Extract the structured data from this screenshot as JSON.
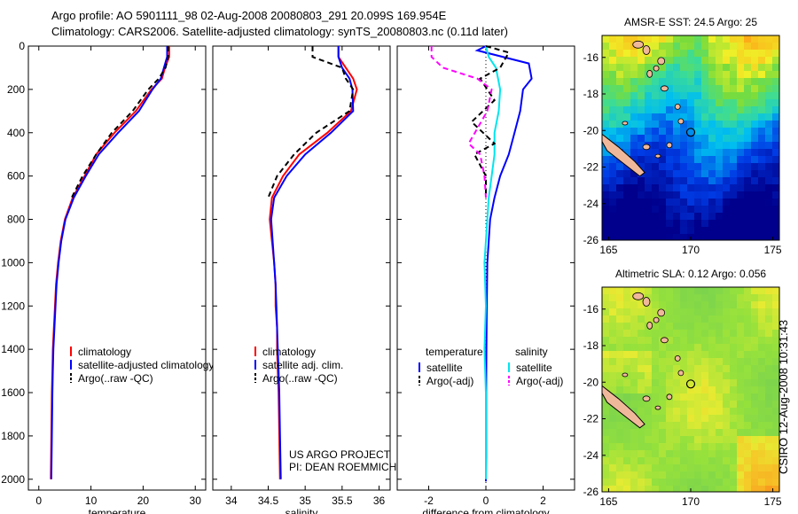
{
  "header": {
    "title_line1": "Argo profile: AO 5901111_98 02-Aug-2008 20080803_291 20.099S 169.954E",
    "title_line2": "Climatology: CARS2006. Satellite-adjusted climatology: synTS_20080803.nc (0.11d later)"
  },
  "side_label": "CSIRO 12-Aug-2008 10:31:43",
  "chart_data": [
    {
      "type": "line",
      "xlabel": "temperature",
      "ylabel": "",
      "xlim": [
        -2,
        32
      ],
      "ylim": [
        2050,
        0
      ],
      "xticks": [
        0,
        10,
        20,
        30
      ],
      "yticks": [
        0,
        200,
        400,
        600,
        800,
        1000,
        1200,
        1400,
        1600,
        1800,
        2000
      ],
      "legend": {
        "position": "lower-center",
        "entries": [
          "climatology",
          "satellite-adjusted climatology",
          "Argo(..raw -QC)"
        ]
      },
      "series": [
        {
          "name": "climatology",
          "color": "#ff0000",
          "dash": "",
          "x": [
            25.0,
            25.0,
            24.2,
            23.6,
            21.6,
            18.6,
            14.5,
            11.0,
            8.8,
            6.5,
            5.0,
            4.2,
            3.7,
            3.3,
            3.1,
            2.9,
            2.7,
            2.6,
            2.5,
            2.4,
            2.3
          ],
          "y": [
            0,
            50,
            100,
            150,
            200,
            300,
            400,
            500,
            600,
            700,
            800,
            900,
            1000,
            1100,
            1200,
            1300,
            1400,
            1500,
            1600,
            1800,
            2000
          ]
        },
        {
          "name": "satellite-adjusted climatology",
          "color": "#0000ff",
          "dash": "",
          "x": [
            24.6,
            24.6,
            24.0,
            23.4,
            21.8,
            19.2,
            15.2,
            11.5,
            9.0,
            6.7,
            5.1,
            4.3,
            3.8,
            3.4,
            3.2,
            3.0,
            2.8,
            2.7,
            2.6,
            2.5,
            2.4
          ],
          "y": [
            0,
            50,
            100,
            150,
            200,
            300,
            400,
            500,
            600,
            700,
            800,
            900,
            1000,
            1100,
            1200,
            1300,
            1400,
            1500,
            1600,
            1800,
            2000
          ]
        },
        {
          "name": "Argo(..raw -QC)",
          "color": "#000000",
          "dash": "6,4",
          "x": [
            24.8,
            24.8,
            24.3,
            23.0,
            21.0,
            18.0,
            14.0,
            11.0,
            8.4,
            6.3
          ],
          "y": [
            0,
            50,
            100,
            150,
            200,
            300,
            400,
            500,
            600,
            700
          ]
        }
      ]
    },
    {
      "type": "line",
      "xlabel": "salinity",
      "ylabel": "",
      "xlim": [
        33.75,
        36.15
      ],
      "ylim": [
        2050,
        0
      ],
      "xticks": [
        34,
        34.5,
        35,
        35.5,
        36
      ],
      "legend": {
        "position": "lower-center",
        "entries": [
          "climatology",
          "satellite adj. clim.",
          "Argo(..raw -QC)"
        ]
      },
      "series": [
        {
          "name": "climatology",
          "color": "#ff0000",
          "dash": "",
          "x": [
            35.45,
            35.45,
            35.55,
            35.65,
            35.7,
            35.62,
            35.3,
            34.92,
            34.7,
            34.55,
            34.52,
            34.55,
            34.58,
            34.6,
            34.6,
            34.62,
            34.62,
            34.63,
            34.64,
            34.65,
            34.66
          ],
          "y": [
            0,
            50,
            100,
            150,
            200,
            300,
            400,
            500,
            600,
            700,
            800,
            900,
            1000,
            1100,
            1200,
            1300,
            1400,
            1500,
            1600,
            1800,
            2000
          ]
        },
        {
          "name": "satellite adj. clim.",
          "color": "#0000ff",
          "dash": "",
          "x": [
            35.45,
            35.45,
            35.5,
            35.6,
            35.64,
            35.65,
            35.35,
            35.0,
            34.75,
            34.58,
            34.54,
            34.56,
            34.58,
            34.6,
            34.61,
            34.62,
            34.63,
            34.64,
            34.65,
            34.66,
            34.67
          ],
          "y": [
            0,
            50,
            100,
            150,
            200,
            300,
            400,
            500,
            600,
            700,
            800,
            900,
            1000,
            1100,
            1200,
            1300,
            1400,
            1500,
            1600,
            1800,
            2000
          ]
        },
        {
          "name": "Argo(..raw -QC)",
          "color": "#000000",
          "dash": "6,4",
          "x": [
            35.1,
            35.1,
            35.5,
            35.55,
            35.65,
            35.6,
            35.15,
            34.85,
            34.62,
            34.5
          ],
          "y": [
            0,
            50,
            100,
            150,
            200,
            300,
            400,
            500,
            600,
            700
          ]
        }
      ]
    },
    {
      "type": "line",
      "xlabel": "difference from climatology",
      "ylabel": "",
      "xlim": [
        -3.1,
        3.1
      ],
      "ylim": [
        2050,
        0
      ],
      "xticks": [
        -2,
        0,
        2
      ],
      "legend": {
        "position": "lower-center",
        "columns": [
          "temperature",
          "salinity"
        ],
        "entries": [
          "satellite",
          "Argo(-adj)",
          "satellite",
          "Argo(-adj)"
        ]
      },
      "series": [
        {
          "name": "temperature satellite",
          "color": "#0000ff",
          "dash": "",
          "x": [
            0.0,
            -0.3,
            1.5,
            1.6,
            1.3,
            1.2,
            1.0,
            0.8,
            0.5,
            0.3,
            0.15,
            0.1,
            0.05,
            0.03,
            0.02,
            0.01,
            0.01,
            0.01,
            0.0,
            0.0
          ],
          "y": [
            0,
            20,
            80,
            150,
            200,
            300,
            400,
            500,
            600,
            700,
            800,
            900,
            1000,
            1200,
            1400,
            1600,
            1800,
            1900,
            2000,
            2010
          ]
        },
        {
          "name": "salinity satellite",
          "color": "#00e5ee",
          "dash": "",
          "x": [
            0.0,
            0.1,
            0.35,
            0.5,
            0.45,
            0.3,
            0.3,
            0.2,
            0.1,
            0.05,
            0.0,
            -0.05,
            0.0,
            -0.05,
            0.0,
            0.0,
            0.0
          ],
          "y": [
            0,
            50,
            100,
            200,
            300,
            400,
            500,
            600,
            700,
            800,
            900,
            1000,
            1200,
            1400,
            1600,
            1800,
            2000
          ]
        },
        {
          "name": "temperature Argo(-adj)",
          "color": "#000000",
          "dash": "6,4",
          "x": [
            0.0,
            0.8,
            0.5,
            -0.2,
            0.3,
            -0.5,
            0.3,
            -0.4,
            0.0,
            0.0
          ],
          "y": [
            0,
            30,
            100,
            150,
            250,
            350,
            450,
            500,
            600,
            700
          ]
        },
        {
          "name": "salinity Argo(-adj)",
          "color": "#ff00ff",
          "dash": "6,4",
          "x": [
            -1.9,
            -1.9,
            -1.5,
            -0.3,
            0.2,
            0.05,
            -0.6,
            -0.2,
            -0.05,
            0.0
          ],
          "y": [
            0,
            50,
            100,
            150,
            200,
            300,
            450,
            500,
            600,
            700
          ]
        }
      ]
    },
    {
      "type": "heatmap",
      "title": "AMSR-E SST: 24.5 Argo: 25",
      "xlim": [
        164.6,
        175.4
      ],
      "ylim": [
        -26,
        -14.8
      ],
      "xticks": [
        165,
        170,
        175
      ],
      "yticks": [
        -16,
        -18,
        -20,
        -22,
        -24,
        -26
      ],
      "marker": {
        "x": 170,
        "y": -20.1
      }
    },
    {
      "type": "heatmap",
      "title": "Altimetric SLA: 0.12 Argo: 0.056",
      "xlim": [
        164.6,
        175.4
      ],
      "ylim": [
        -26,
        -14.8
      ],
      "xticks": [
        165,
        170,
        175
      ],
      "yticks": [
        -16,
        -18,
        -20,
        -22,
        -24,
        -26
      ],
      "marker": {
        "x": 170,
        "y": -20.1
      }
    }
  ],
  "annotation": {
    "line1": "US ARGO PROJECT",
    "line2": "PI: DEAN ROEMMICH"
  }
}
